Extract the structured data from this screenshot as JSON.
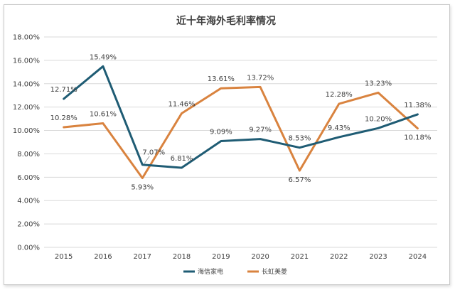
{
  "chart_data": {
    "type": "line",
    "title": "近十年海外毛利率情况",
    "categories": [
      "2015",
      "2016",
      "2017",
      "2018",
      "2019",
      "2020",
      "2021",
      "2022",
      "2023",
      "2024"
    ],
    "ylim": [
      0,
      18
    ],
    "yticks": [
      "0.00%",
      "2.00%",
      "4.00%",
      "6.00%",
      "8.00%",
      "10.00%",
      "12.00%",
      "14.00%",
      "16.00%",
      "18.00%"
    ],
    "grid": true,
    "legend_position": "bottom",
    "series": [
      {
        "name": "海信家电",
        "color": "#1f5c74",
        "values": [
          12.71,
          15.49,
          7.07,
          6.81,
          9.09,
          9.27,
          8.53,
          9.43,
          10.2,
          11.38
        ],
        "labels": [
          "12.71%",
          "15.49%",
          "7.07%",
          "6.81%",
          "9.09%",
          "9.27%",
          "8.53%",
          "9.43%",
          "10.20%",
          "11.38%"
        ]
      },
      {
        "name": "长虹美菱",
        "color": "#d9833f",
        "values": [
          10.28,
          10.61,
          5.93,
          11.46,
          13.61,
          13.72,
          6.57,
          12.28,
          13.23,
          10.18
        ],
        "labels": [
          "10.28%",
          "10.61%",
          "5.93%",
          "11.46%",
          "13.61%",
          "13.72%",
          "6.57%",
          "12.28%",
          "13.23%",
          "10.18%"
        ]
      }
    ]
  }
}
